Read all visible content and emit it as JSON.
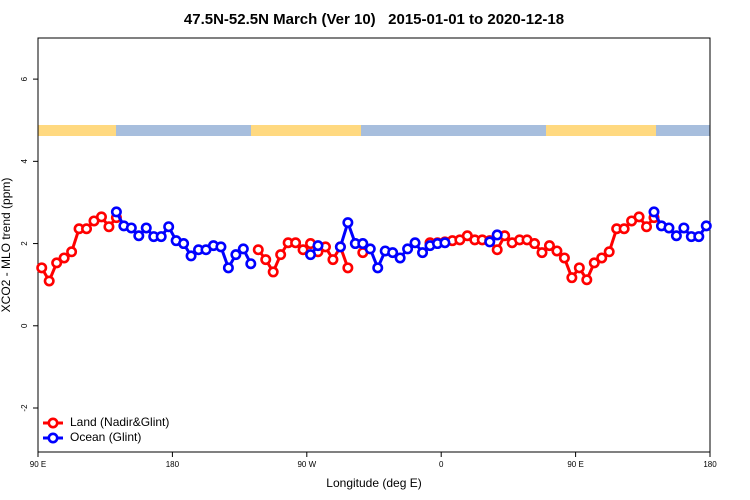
{
  "chart_data": {
    "type": "line",
    "title": "47.5N-52.5N March (Ver 10)   2015-01-01 to 2020-12-18",
    "xlabel": "Longitude (deg E)",
    "ylabel": "XCO2 - MLO trend (ppm)",
    "xlim": [
      90,
      540
    ],
    "ylim": [
      -3.07,
      7.0
    ],
    "xticks": [
      {
        "value": 90,
        "label": "90 E"
      },
      180,
      {
        "value": 270,
        "label": "90 W"
      },
      {
        "value": 360,
        "label": "0"
      },
      {
        "value": 450,
        "label": "90 E"
      },
      {
        "value": 540,
        "label": "180"
      }
    ],
    "yticks": [
      -2,
      0,
      2,
      4,
      6
    ],
    "legend": "bottomleft",
    "x": [
      92.5,
      97.5,
      102.5,
      107.5,
      112.5,
      117.5,
      122.5,
      127.5,
      132.5,
      137.5,
      142.5,
      147.5,
      152.5,
      157.5,
      162.5,
      167.5,
      172.5,
      177.5,
      182.5,
      187.5,
      192.5,
      197.5,
      202.5,
      207.5,
      212.5,
      217.5,
      222.5,
      227.5,
      232.5,
      237.5,
      242.5,
      247.5,
      252.5,
      257.5,
      262.5,
      267.5,
      272.5,
      277.5,
      282.5,
      287.5,
      292.5,
      297.5,
      302.5,
      307.5,
      312.5,
      317.5,
      322.5,
      327.5,
      332.5,
      337.5,
      342.5,
      347.5,
      352.5,
      357.5,
      362.5,
      367.5,
      372.5,
      377.5,
      382.5,
      387.5,
      392.5,
      397.5,
      402.5,
      407.5,
      412.5,
      417.5,
      422.5,
      427.5,
      432.5,
      437.5,
      442.5,
      447.5,
      452.5,
      457.5,
      462.5,
      467.5,
      472.5,
      477.5,
      482.5,
      487.5,
      492.5,
      497.5,
      502.5,
      507.5,
      512.5,
      517.5,
      522.5,
      527.5,
      532.5,
      537.5
    ],
    "series": [
      {
        "name": "Land (Nadir&Glint)",
        "color": "#ff0000",
        "values": [
          1.41,
          1.09,
          1.53,
          1.65,
          1.8,
          2.36,
          2.36,
          2.55,
          2.65,
          2.41,
          2.63,
          null,
          null,
          null,
          null,
          null,
          null,
          null,
          null,
          null,
          null,
          null,
          null,
          null,
          null,
          null,
          null,
          null,
          null,
          1.85,
          1.61,
          1.31,
          1.73,
          2.02,
          2.02,
          1.85,
          2.0,
          1.8,
          1.92,
          1.61,
          1.92,
          1.41,
          null,
          1.78,
          null,
          null,
          null,
          null,
          null,
          null,
          null,
          null,
          2.02,
          2.02,
          2.04,
          2.07,
          2.09,
          2.19,
          2.09,
          2.09,
          2.07,
          1.85,
          2.19,
          2.02,
          2.09,
          2.09,
          2.0,
          1.78,
          1.95,
          1.82,
          1.65,
          1.17,
          1.41,
          1.12,
          1.53,
          1.65,
          1.8,
          2.36,
          2.36,
          2.55,
          2.65,
          2.41,
          2.63,
          null,
          null,
          null,
          null,
          null,
          null,
          null
        ]
      },
      {
        "name": "Ocean (Glint)",
        "color": "#0000ff",
        "values": [
          null,
          null,
          null,
          null,
          null,
          null,
          null,
          null,
          null,
          null,
          2.77,
          2.43,
          2.38,
          2.19,
          2.38,
          2.17,
          2.17,
          2.41,
          2.07,
          2.0,
          1.7,
          1.85,
          1.85,
          1.95,
          1.92,
          1.41,
          1.73,
          1.87,
          1.51,
          null,
          null,
          null,
          null,
          null,
          null,
          null,
          1.73,
          1.95,
          null,
          null,
          1.92,
          2.51,
          2.0,
          2.0,
          1.87,
          1.41,
          1.82,
          1.78,
          1.65,
          1.87,
          2.02,
          1.78,
          1.95,
          2.0,
          2.02,
          null,
          null,
          null,
          null,
          null,
          2.04,
          2.21,
          null,
          null,
          null,
          null,
          null,
          null,
          null,
          null,
          null,
          null,
          null,
          null,
          null,
          null,
          null,
          null,
          null,
          null,
          null,
          null,
          2.77,
          2.43,
          2.38,
          2.19,
          2.38,
          2.17,
          2.17,
          2.43
        ]
      }
    ]
  }
}
